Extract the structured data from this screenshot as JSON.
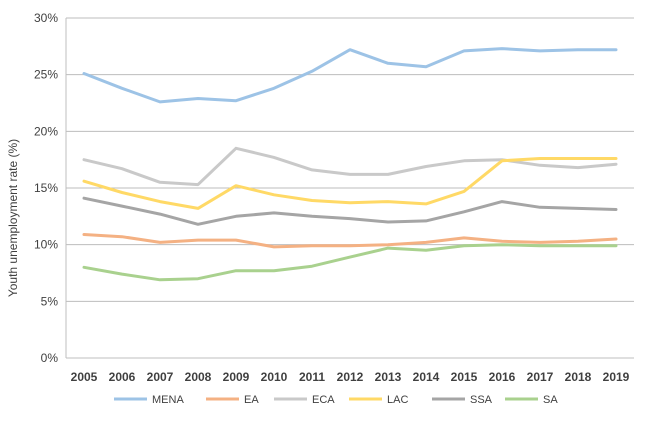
{
  "chart_data": {
    "type": "line",
    "title": "",
    "xlabel": "",
    "ylabel": "Youth unemployment rate (%)",
    "x": [
      "2005",
      "2006",
      "2007",
      "2008",
      "2009",
      "2010",
      "2011",
      "2012",
      "2013",
      "2014",
      "2015",
      "2016",
      "2017",
      "2018",
      "2019"
    ],
    "ylim": [
      0,
      30
    ],
    "y_ticks": [
      "0%",
      "5%",
      "10%",
      "15%",
      "20%",
      "25%",
      "30%"
    ],
    "grid": "horizontal",
    "legend_position": "bottom",
    "series": [
      {
        "name": "MENA",
        "color": "#9DC3E6",
        "values": [
          25.1,
          23.8,
          22.6,
          22.9,
          22.7,
          23.8,
          25.3,
          27.2,
          26.0,
          25.7,
          27.1,
          27.3,
          27.1,
          27.2,
          27.2
        ]
      },
      {
        "name": "EA",
        "color": "#F4B183",
        "values": [
          10.9,
          10.7,
          10.2,
          10.4,
          10.4,
          9.8,
          9.9,
          9.9,
          10.0,
          10.2,
          10.6,
          10.3,
          10.2,
          10.3,
          10.5
        ]
      },
      {
        "name": "ECA",
        "color": "#C9C9C9",
        "values": [
          17.5,
          16.7,
          15.5,
          15.3,
          18.5,
          17.7,
          16.6,
          16.2,
          16.2,
          16.9,
          17.4,
          17.5,
          17.0,
          16.8,
          17.1
        ]
      },
      {
        "name": "LAC",
        "color": "#FFD966",
        "values": [
          15.6,
          14.6,
          13.8,
          13.2,
          15.2,
          14.4,
          13.9,
          13.7,
          13.8,
          13.6,
          14.7,
          17.4,
          17.6,
          17.6,
          17.6
        ]
      },
      {
        "name": "SSA",
        "color": "#A5A5A5",
        "values": [
          14.1,
          13.4,
          12.7,
          11.8,
          12.5,
          12.8,
          12.5,
          12.3,
          12.0,
          12.1,
          12.9,
          13.8,
          13.3,
          13.2,
          13.1
        ]
      },
      {
        "name": "SA",
        "color": "#A9D18E",
        "values": [
          8.0,
          7.4,
          6.9,
          7.0,
          7.7,
          7.7,
          8.1,
          8.9,
          9.7,
          9.5,
          9.9,
          10.0,
          9.9,
          9.9,
          9.9
        ]
      }
    ]
  }
}
